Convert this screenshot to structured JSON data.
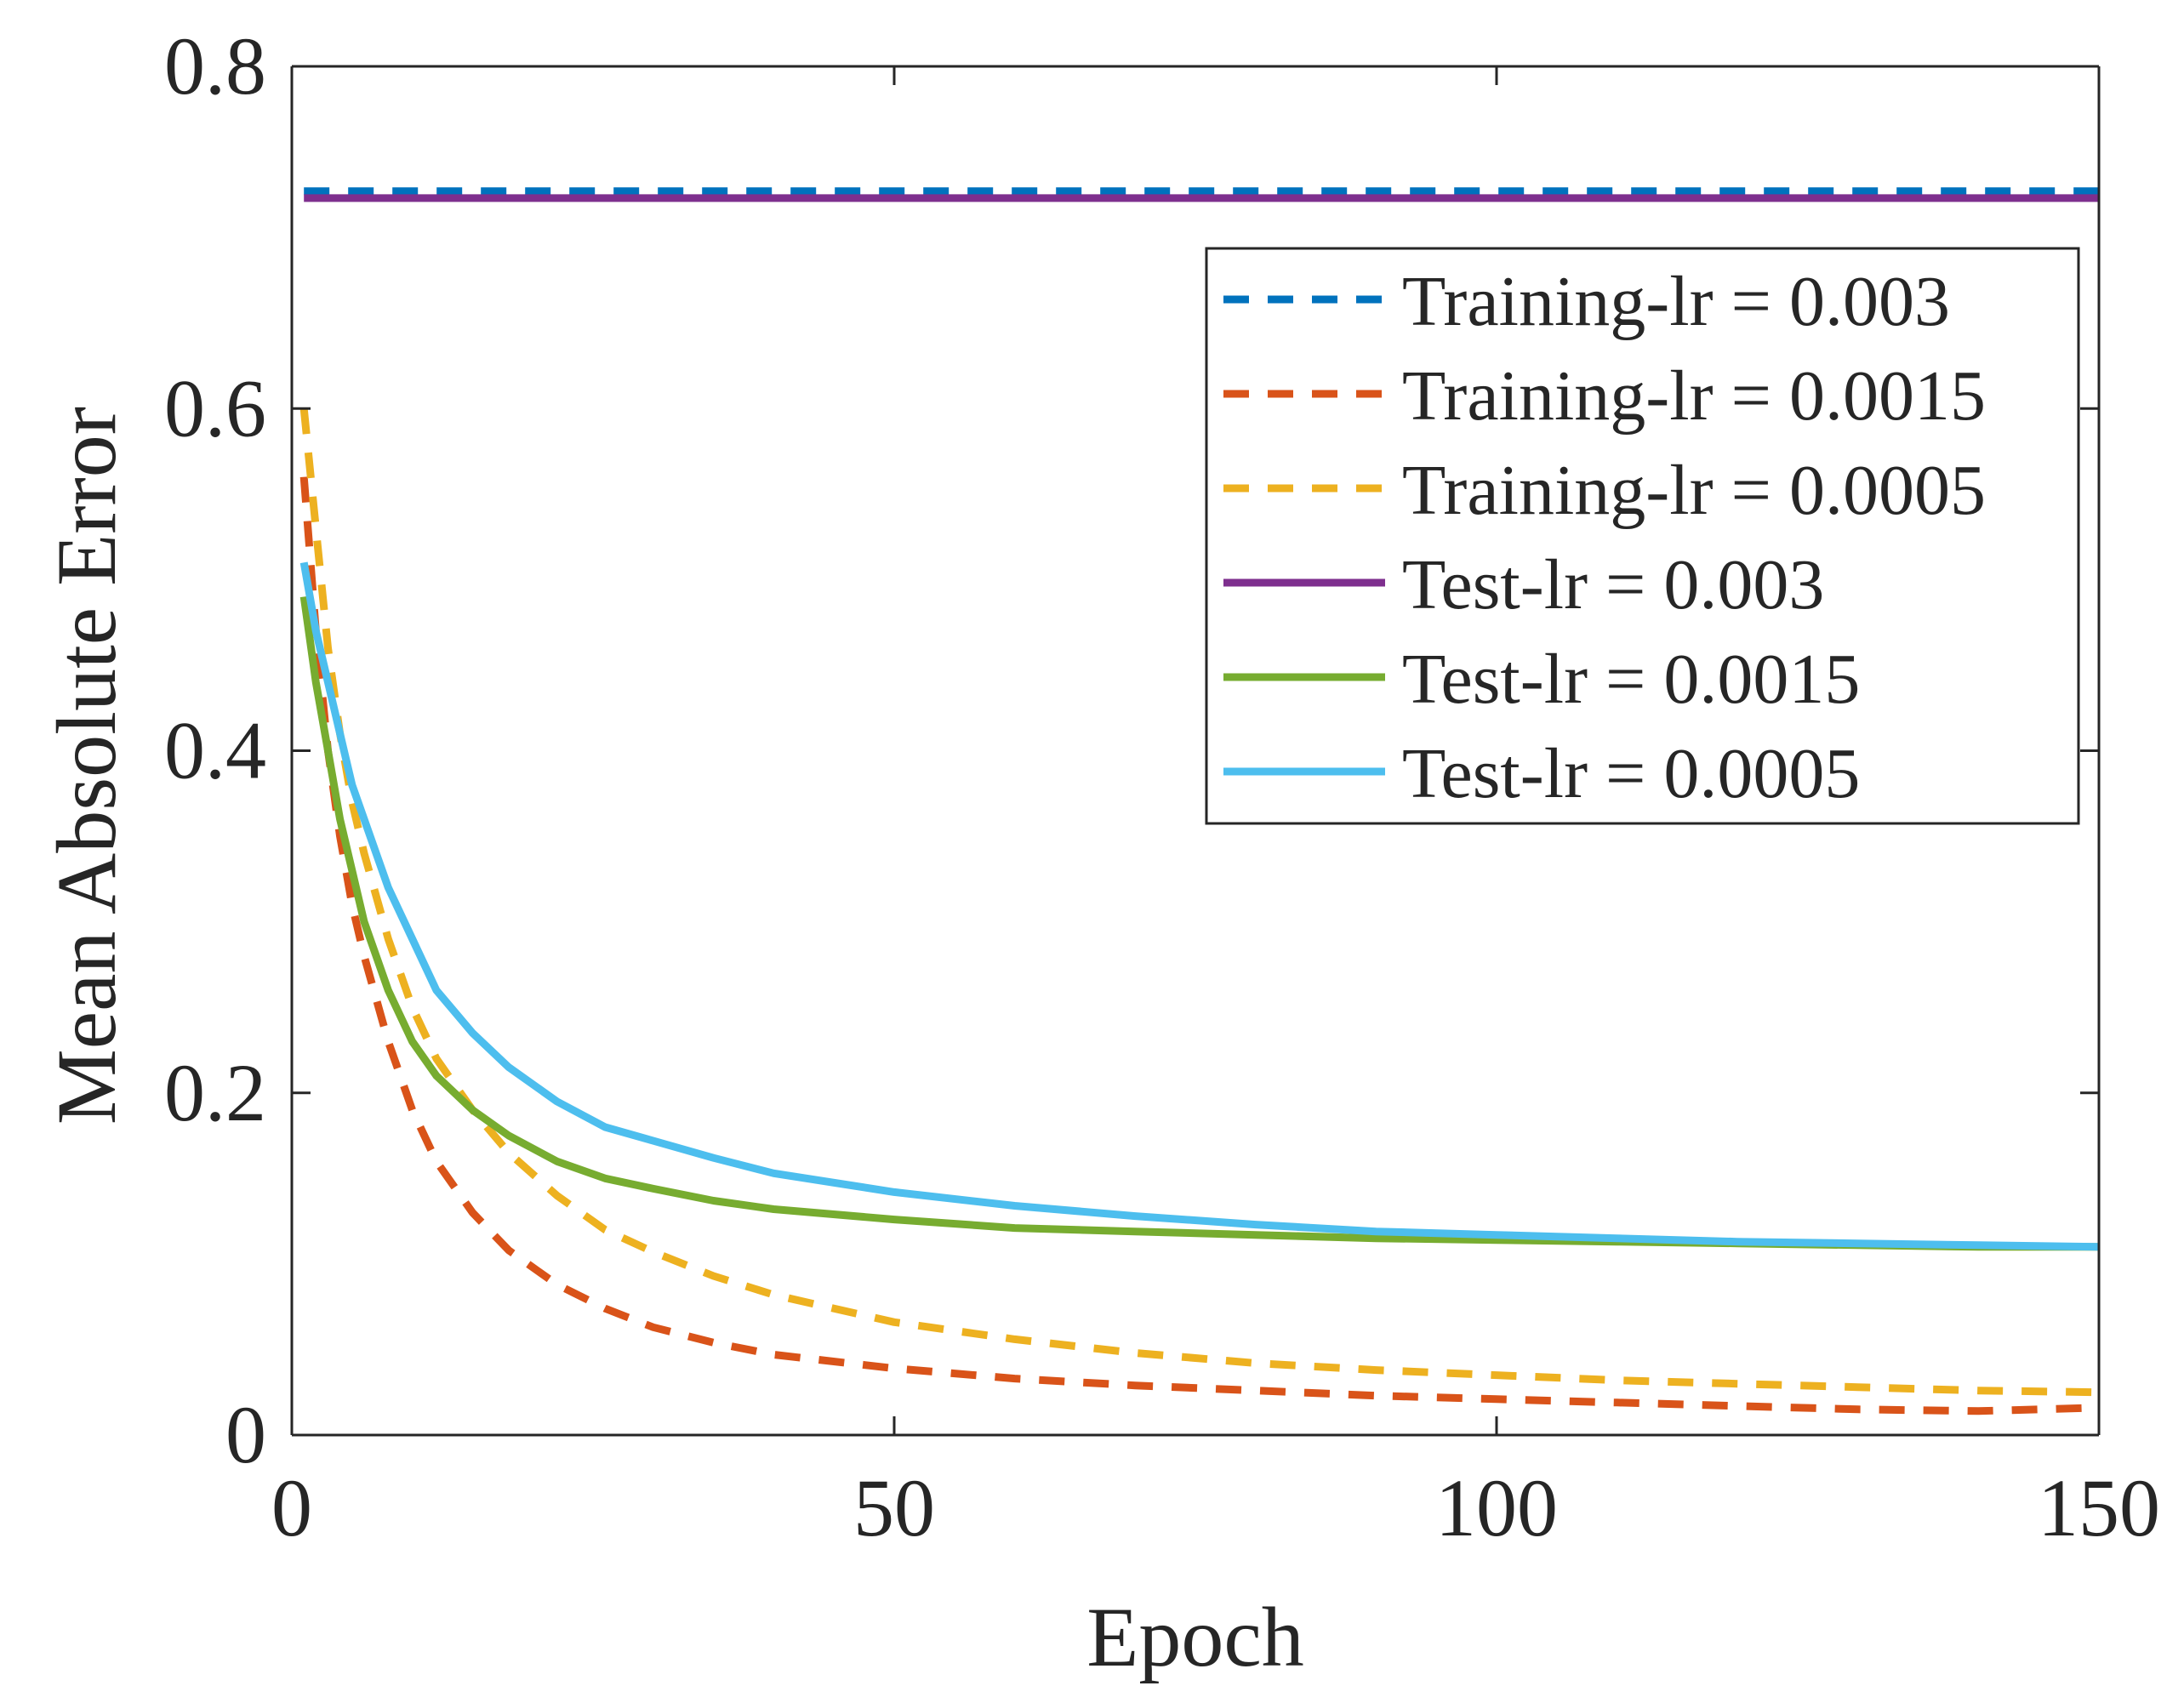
{
  "chart_data": {
    "type": "line",
    "title": "",
    "xlabel": "Epoch",
    "ylabel": "Mean Absolute Error",
    "xlim": [
      0,
      150
    ],
    "ylim": [
      0,
      0.8
    ],
    "xticks": [
      0,
      50,
      100,
      150
    ],
    "xtick_labels": [
      "0",
      "50",
      "100",
      "150"
    ],
    "yticks": [
      0,
      0.2,
      0.4,
      0.6,
      0.8
    ],
    "ytick_labels": [
      "0",
      "0.2",
      "0.4",
      "0.6",
      "0.8"
    ],
    "grid": false,
    "legend_position": "top-right",
    "series": [
      {
        "name": "Training-lr = 0.003",
        "color": "#0072BD",
        "style": "dashed",
        "x": [
          1,
          150
        ],
        "y": [
          0.727,
          0.727
        ]
      },
      {
        "name": "Training-lr = 0.0015",
        "color": "#D95319",
        "style": "dashed",
        "x": [
          1,
          2,
          3,
          4,
          5,
          6,
          8,
          10,
          12,
          15,
          18,
          22,
          26,
          30,
          35,
          40,
          50,
          60,
          70,
          80,
          90,
          100,
          110,
          120,
          130,
          140,
          150
        ],
        "y": [
          0.56,
          0.47,
          0.4,
          0.35,
          0.31,
          0.28,
          0.23,
          0.19,
          0.16,
          0.13,
          0.108,
          0.088,
          0.074,
          0.063,
          0.054,
          0.047,
          0.039,
          0.033,
          0.029,
          0.026,
          0.023,
          0.021,
          0.019,
          0.017,
          0.015,
          0.014,
          0.016
        ]
      },
      {
        "name": "Training-lr = 0.0005",
        "color": "#EDB120",
        "style": "dashed",
        "x": [
          1,
          2,
          3,
          4,
          5,
          6,
          8,
          10,
          12,
          15,
          18,
          22,
          26,
          30,
          35,
          40,
          50,
          60,
          70,
          80,
          90,
          100,
          110,
          120,
          130,
          140,
          150
        ],
        "y": [
          0.6,
          0.53,
          0.46,
          0.41,
          0.37,
          0.34,
          0.29,
          0.25,
          0.22,
          0.19,
          0.165,
          0.14,
          0.12,
          0.107,
          0.093,
          0.082,
          0.066,
          0.056,
          0.048,
          0.042,
          0.038,
          0.035,
          0.032,
          0.03,
          0.028,
          0.026,
          0.025
        ]
      },
      {
        "name": "Test-lr = 0.003",
        "color": "#7E2F8E",
        "style": "solid",
        "x": [
          1,
          150
        ],
        "y": [
          0.723,
          0.723
        ]
      },
      {
        "name": "Test-lr = 0.0015",
        "color": "#77AC30",
        "style": "solid",
        "x": [
          1,
          2,
          3,
          4,
          5,
          6,
          8,
          10,
          12,
          15,
          18,
          22,
          26,
          30,
          35,
          40,
          50,
          60,
          70,
          80,
          90,
          100,
          110,
          120,
          130,
          140,
          150
        ],
        "y": [
          0.49,
          0.44,
          0.4,
          0.36,
          0.33,
          0.3,
          0.26,
          0.23,
          0.21,
          0.19,
          0.175,
          0.16,
          0.15,
          0.144,
          0.137,
          0.132,
          0.126,
          0.121,
          0.119,
          0.117,
          0.115,
          0.114,
          0.113,
          0.112,
          0.111,
          0.11,
          0.11
        ]
      },
      {
        "name": "Test-lr = 0.0005",
        "color": "#4DBEEE",
        "style": "solid",
        "x": [
          1,
          2,
          3,
          4,
          5,
          6,
          8,
          10,
          12,
          15,
          18,
          22,
          26,
          30,
          35,
          40,
          50,
          60,
          70,
          80,
          90,
          100,
          110,
          120,
          130,
          140,
          150
        ],
        "y": [
          0.51,
          0.47,
          0.44,
          0.41,
          0.38,
          0.36,
          0.32,
          0.29,
          0.26,
          0.235,
          0.215,
          0.195,
          0.18,
          0.172,
          0.162,
          0.153,
          0.142,
          0.134,
          0.128,
          0.123,
          0.119,
          0.117,
          0.115,
          0.113,
          0.112,
          0.111,
          0.11
        ]
      }
    ]
  }
}
